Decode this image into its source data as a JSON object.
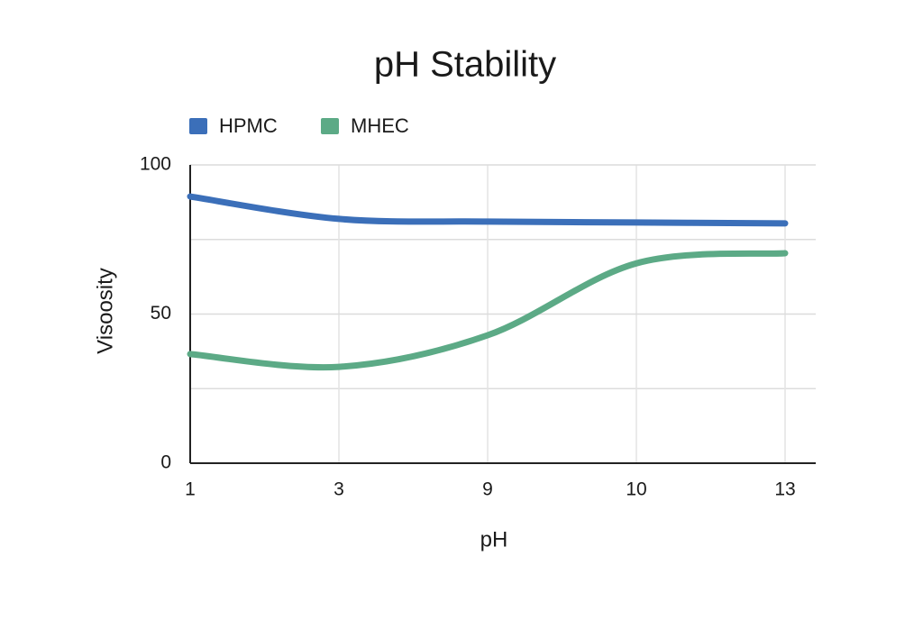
{
  "chart_data": {
    "type": "line",
    "title": "pH Stability",
    "x_label": "pH",
    "y_label": "Visoosity",
    "categories": [
      "1",
      "3",
      "9",
      "10",
      "13"
    ],
    "series": [
      {
        "name": "HPMC",
        "color": "#3b6fb9",
        "values": [
          89.4,
          81.9,
          81,
          80.7,
          80.4
        ]
      },
      {
        "name": "MHEC",
        "color": "#5caa86",
        "values": [
          36.6,
          32.3,
          42.9,
          67,
          70.4
        ]
      }
    ],
    "ylim": [
      0,
      100
    ],
    "yticks": [
      0,
      50,
      100
    ],
    "minor_yticks": [
      25,
      75
    ],
    "grid": true,
    "legend": "top-left",
    "smooth": true
  }
}
